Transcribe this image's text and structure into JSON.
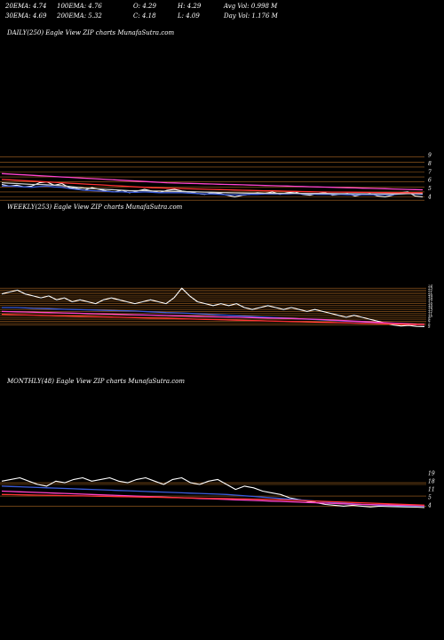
{
  "header": {
    "row1": [
      "20EMA: 4.74",
      "100EMA: 4.76",
      "O: 4.29",
      "H: 4.29",
      "Avg Vol: 0.998  M"
    ],
    "row2": [
      "30EMA: 4.69",
      "200EMA: 5.32",
      "C: 4.18",
      "L: 4.09",
      "Day Vol: 1.176  M"
    ]
  },
  "colors": {
    "background": "#000000",
    "price": "#ffffff",
    "ema_blue": "#3a5bd9",
    "ema_white": "#d0d0d0",
    "ema_pink": "#ff44cc",
    "ema_red": "#ff3333",
    "level_orange": "#c8782a"
  },
  "chart_data": [
    {
      "type": "line",
      "title": "DAILY(250) Eagle   View  ZIP charts MunafaSutra.com",
      "y_tick_labels": [
        "9",
        "8",
        "7",
        "6",
        "5",
        "4"
      ],
      "ylim": [
        3.5,
        9.5
      ],
      "series": [
        {
          "color": "#ffffff",
          "values": [
            5.7,
            5.5,
            5.6,
            5.4,
            5.5,
            5.9,
            6.0,
            5.6,
            5.8,
            5.3,
            5.2,
            5.0,
            5.3,
            5.1,
            4.9,
            4.8,
            5.0,
            4.7,
            4.9,
            5.1,
            4.9,
            4.7,
            5.0,
            5.1,
            4.9,
            4.8,
            4.6,
            4.5,
            4.7,
            4.6,
            4.4,
            4.2,
            4.4,
            4.5,
            4.7,
            4.6,
            4.8,
            4.5,
            4.7,
            4.8,
            4.5,
            4.4,
            4.6,
            4.7,
            4.4,
            4.5,
            4.6,
            4.3,
            4.5,
            4.6,
            4.3,
            4.2,
            4.4,
            4.7,
            4.8,
            4.3,
            4.2
          ]
        },
        {
          "color": "#3a5bd9",
          "values": [
            5.5,
            5.5,
            5.45,
            5.4,
            5.35,
            5.45,
            5.5,
            5.4,
            5.35,
            5.2,
            5.1,
            5.0,
            4.95,
            4.9,
            4.85,
            4.8,
            4.8,
            4.75,
            4.75,
            4.8,
            4.75,
            4.7,
            4.7,
            4.7,
            4.7,
            4.65,
            4.6,
            4.55,
            4.55,
            4.5,
            4.45,
            4.45,
            4.45,
            4.5,
            4.5,
            4.55,
            4.55,
            4.55,
            4.55,
            4.6,
            4.55,
            4.55,
            4.5,
            4.5,
            4.5,
            4.5,
            4.45,
            4.45,
            4.45,
            4.45,
            4.45,
            4.45,
            4.45,
            4.55,
            4.6,
            4.55,
            4.5
          ]
        },
        {
          "color": "#d0d0d0",
          "values": [
            5.9,
            5.85,
            5.8,
            5.75,
            5.7,
            5.7,
            5.65,
            5.6,
            5.55,
            5.45,
            5.35,
            5.25,
            5.2,
            5.15,
            5.1,
            5.05,
            5.0,
            4.95,
            4.95,
            4.95,
            4.9,
            4.9,
            4.88,
            4.86,
            4.84,
            4.82,
            4.8,
            4.78,
            4.75,
            4.72,
            4.7,
            4.68,
            4.66,
            4.65,
            4.65,
            4.64,
            4.63,
            4.62,
            4.62,
            4.62,
            4.61,
            4.6,
            4.6,
            4.6,
            4.59,
            4.58,
            4.58,
            4.57,
            4.57,
            4.56,
            4.56,
            4.56,
            4.55,
            4.56,
            4.58,
            4.58,
            4.57
          ]
        },
        {
          "color": "#ff44cc",
          "values": [
            7.0,
            6.95,
            6.9,
            6.85,
            6.8,
            6.75,
            6.7,
            6.65,
            6.6,
            6.55,
            6.5,
            6.45,
            6.4,
            6.35,
            6.3,
            6.25,
            6.2,
            6.15,
            6.1,
            6.05,
            6.0,
            5.95,
            5.9,
            5.88,
            5.85,
            5.82,
            5.8,
            5.77,
            5.75,
            5.72,
            5.7,
            5.67,
            5.65,
            5.62,
            5.6,
            5.57,
            5.55,
            5.52,
            5.5,
            5.47,
            5.45,
            5.42,
            5.4,
            5.37,
            5.35,
            5.32,
            5.3,
            5.28,
            5.25,
            5.22,
            5.2,
            5.18,
            5.15,
            5.12,
            5.1,
            5.08,
            5.05
          ]
        },
        {
          "color": "#ff3333",
          "values": [
            6.3,
            6.25,
            6.2,
            6.15,
            6.1,
            6.05,
            6.0,
            5.95,
            5.9,
            5.85,
            5.8,
            5.75,
            5.7,
            5.65,
            5.6,
            5.55,
            5.5,
            5.45,
            5.4,
            5.35,
            5.3,
            5.28,
            5.25,
            5.22,
            5.2,
            5.17,
            5.15,
            5.12,
            5.1,
            5.07,
            5.05,
            5.02,
            5.0,
            4.98,
            4.96,
            4.94,
            4.92,
            4.9,
            4.88,
            4.86,
            4.84,
            4.82,
            4.8,
            4.79,
            4.78,
            4.77,
            4.76,
            4.75,
            4.74,
            4.73,
            4.72,
            4.71,
            4.7,
            4.7,
            4.7,
            4.7,
            4.69
          ]
        }
      ],
      "levels": [
        9,
        8.4,
        7.8,
        7.2,
        6.6,
        6.0,
        5.4,
        4.8,
        4.2,
        3.8
      ]
    },
    {
      "type": "line",
      "title": "WEEKLY(253) Eagle   View  ZIP charts MunafaSutra.com",
      "y_tick_labels": [
        "24",
        "23",
        "22",
        "21",
        "20",
        "19",
        "18",
        "17",
        "16",
        "15",
        "14",
        "13",
        "12",
        "11",
        "10",
        "9",
        "8",
        "7",
        "6",
        "5"
      ],
      "ylim": [
        3,
        25
      ],
      "series": [
        {
          "color": "#ffffff",
          "values": [
            21,
            22,
            23,
            21,
            20,
            19,
            20,
            18,
            19,
            17,
            18,
            17,
            16,
            18,
            19,
            18,
            17,
            16,
            17,
            18,
            17,
            16,
            19,
            24,
            20,
            17,
            16,
            15,
            16,
            15,
            16,
            14,
            13,
            14,
            15,
            14,
            13,
            14,
            13,
            12,
            13,
            12,
            11,
            10,
            9,
            10,
            9,
            8,
            7,
            6,
            5,
            4.5,
            4.8,
            4.3,
            4.2
          ]
        },
        {
          "color": "#3a5bd9",
          "values": [
            14,
            14,
            14,
            13.8,
            13.6,
            13.5,
            13.4,
            13.2,
            13.1,
            13,
            12.9,
            12.8,
            12.7,
            12.6,
            12.5,
            12.4,
            12.3,
            12.2,
            12,
            11.8,
            11.6,
            11.4,
            11.3,
            11.2,
            11,
            10.8,
            10.6,
            10.4,
            10.2,
            10,
            9.8,
            9.6,
            9.4,
            9.2,
            9,
            8.8,
            8.6,
            8.4,
            8.2,
            8,
            7.8,
            7.6,
            7.4,
            7.2,
            7,
            6.8,
            6.6,
            6.4,
            6.2,
            6,
            5.8,
            5.6,
            5.4,
            5.2,
            5
          ]
        },
        {
          "color": "#ff44cc",
          "values": [
            12,
            11.9,
            11.8,
            11.7,
            11.6,
            11.5,
            11.4,
            11.3,
            11.2,
            11.1,
            11,
            10.9,
            10.8,
            10.7,
            10.6,
            10.5,
            10.4,
            10.3,
            10.2,
            10.1,
            10,
            9.9,
            9.8,
            9.7,
            9.6,
            9.5,
            9.4,
            9.3,
            9.2,
            9.1,
            9,
            8.9,
            8.8,
            8.7,
            8.6,
            8.5,
            8.4,
            8.3,
            8.2,
            8.1,
            8,
            7.8,
            7.6,
            7.4,
            7.2,
            7,
            6.8,
            6.6,
            6.4,
            6.2,
            6,
            5.8,
            5.6,
            5.4,
            5.3
          ]
        },
        {
          "color": "#ff3333",
          "values": [
            10.5,
            10.4,
            10.3,
            10.2,
            10.1,
            10,
            9.9,
            9.8,
            9.7,
            9.6,
            9.5,
            9.4,
            9.3,
            9.2,
            9.1,
            9,
            8.9,
            8.8,
            8.7,
            8.6,
            8.5,
            8.4,
            8.3,
            8.2,
            8.1,
            8,
            7.9,
            7.8,
            7.7,
            7.6,
            7.5,
            7.4,
            7.3,
            7.2,
            7.1,
            7,
            6.9,
            6.8,
            6.7,
            6.6,
            6.5,
            6.4,
            6.3,
            6.2,
            6.1,
            6,
            5.9,
            5.8,
            5.7,
            5.6,
            5.5,
            5.4,
            5.3,
            5.2,
            5.1
          ]
        }
      ],
      "levels": [
        24,
        23,
        22,
        21,
        20,
        19,
        18,
        17,
        16,
        15,
        14,
        13,
        12,
        11,
        10,
        9,
        8,
        7,
        6,
        5
      ]
    },
    {
      "type": "line",
      "title": "MONTHLY(48) Eagle   View  ZIP charts MunafaSutra.com",
      "y_tick_labels": [
        "19",
        "18",
        "11",
        "5",
        "4"
      ],
      "ylim": [
        2,
        26
      ],
      "series": [
        {
          "color": "#ffffff",
          "values": [
            20,
            21,
            22,
            20,
            18,
            17,
            20,
            19,
            21,
            22,
            20,
            21,
            22,
            20,
            19,
            21,
            22,
            20,
            18,
            21,
            22,
            19,
            18,
            20,
            21,
            18,
            15,
            17,
            16,
            14,
            13,
            12,
            10,
            9,
            8,
            7,
            6,
            5.5,
            5,
            5.5,
            5,
            4.5,
            5,
            4.8,
            4.6,
            4.5,
            4.4,
            4.2
          ]
        },
        {
          "color": "#3a5bd9",
          "values": [
            17,
            16.8,
            16.6,
            16.4,
            16.2,
            16,
            15.8,
            15.6,
            15.4,
            15.2,
            15,
            14.8,
            14.6,
            14.4,
            14.2,
            14,
            13.8,
            13.6,
            13.4,
            13.2,
            13,
            12.8,
            12.6,
            12.4,
            12.2,
            12,
            11.6,
            11.2,
            10.8,
            10.4,
            10,
            9.6,
            9.2,
            8.8,
            8.4,
            8,
            7.6,
            7.2,
            6.8,
            6.4,
            6,
            5.8,
            5.6,
            5.4,
            5.3,
            5.2,
            5.1,
            5
          ]
        },
        {
          "color": "#ff44cc",
          "values": [
            14,
            13.8,
            13.6,
            13.4,
            13.2,
            13,
            12.8,
            12.6,
            12.4,
            12.2,
            12,
            11.8,
            11.6,
            11.4,
            11.2,
            11,
            10.8,
            10.6,
            10.4,
            10.2,
            10,
            9.8,
            9.6,
            9.4,
            9.2,
            9,
            8.8,
            8.6,
            8.4,
            8.2,
            8,
            7.8,
            7.6,
            7.4,
            7.2,
            7,
            6.8,
            6.6,
            6.4,
            6.2,
            6,
            5.9,
            5.8,
            5.7,
            5.6,
            5.5,
            5.4,
            5.3
          ]
        },
        {
          "color": "#ff3333",
          "values": [
            12,
            11.9,
            11.8,
            11.7,
            11.6,
            11.5,
            11.4,
            11.3,
            11.2,
            11.1,
            11,
            10.9,
            10.8,
            10.7,
            10.6,
            10.5,
            10.4,
            10.3,
            10.2,
            10.1,
            10,
            9.9,
            9.8,
            9.7,
            9.6,
            9.5,
            9.4,
            9.3,
            9.2,
            9.1,
            9,
            8.8,
            8.6,
            8.4,
            8.2,
            8,
            7.8,
            7.6,
            7.4,
            7.2,
            7,
            6.8,
            6.6,
            6.4,
            6.2,
            6,
            5.8,
            5.6
          ]
        }
      ],
      "levels": [
        19,
        18,
        11,
        5
      ]
    }
  ]
}
